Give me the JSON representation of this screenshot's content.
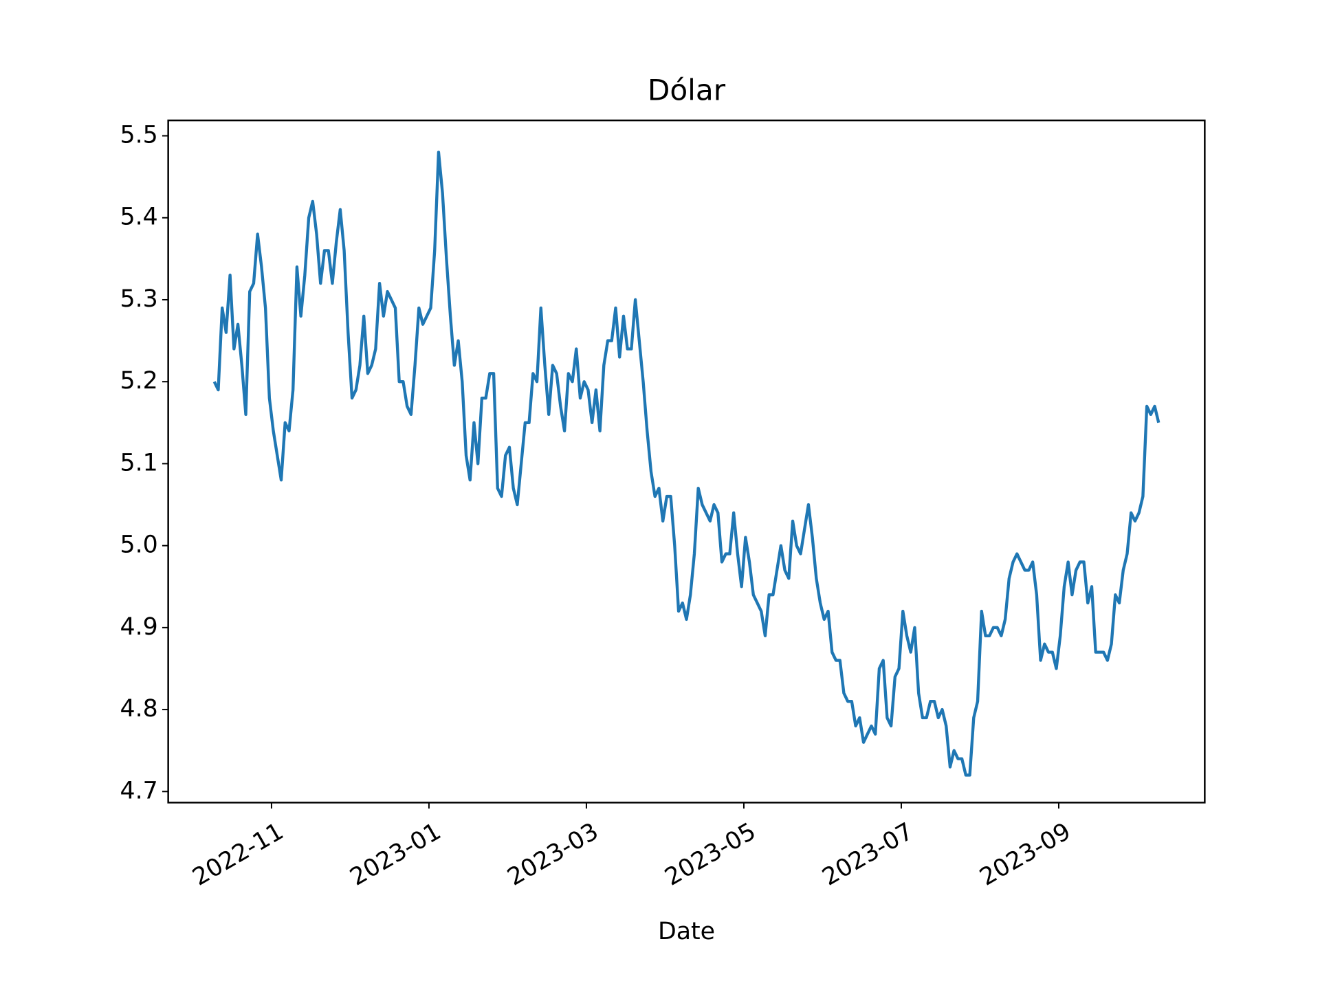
{
  "chart_data": {
    "type": "line",
    "title": "Dólar",
    "x_label": "Date",
    "color": "#1f77b4",
    "grid": false,
    "xticks": [
      "2022-11",
      "2023-01",
      "2023-03",
      "2023-05",
      "2023-07",
      "2023-09"
    ],
    "ylim": [
      4.6865,
      5.5188
    ],
    "yticks": [
      {
        "value": 4.7,
        "label": "4.7"
      },
      {
        "value": 4.8,
        "label": "4.8"
      },
      {
        "value": 4.9,
        "label": "4.9"
      },
      {
        "value": 5.0,
        "label": "5.0"
      },
      {
        "value": 5.1,
        "label": "5.1"
      },
      {
        "value": 5.2,
        "label": "5.2"
      },
      {
        "value": 5.3,
        "label": "5.3"
      },
      {
        "value": 5.4,
        "label": "5.4"
      },
      {
        "value": 5.5,
        "label": "5.5"
      }
    ],
    "values": [
      5.2,
      5.19,
      5.29,
      5.26,
      5.33,
      5.24,
      5.27,
      5.22,
      5.16,
      5.31,
      5.32,
      5.38,
      5.34,
      5.29,
      5.18,
      5.14,
      5.11,
      5.08,
      5.15,
      5.14,
      5.19,
      5.34,
      5.28,
      5.33,
      5.4,
      5.42,
      5.38,
      5.32,
      5.36,
      5.36,
      5.32,
      5.37,
      5.41,
      5.36,
      5.26,
      5.18,
      5.19,
      5.22,
      5.28,
      5.21,
      5.22,
      5.24,
      5.32,
      5.28,
      5.31,
      5.3,
      5.29,
      5.2,
      5.2,
      5.17,
      5.16,
      5.22,
      5.29,
      5.27,
      5.28,
      5.29,
      5.36,
      5.48,
      5.43,
      5.35,
      5.28,
      5.22,
      5.25,
      5.2,
      5.11,
      5.08,
      5.15,
      5.1,
      5.18,
      5.18,
      5.21,
      5.21,
      5.07,
      5.06,
      5.11,
      5.12,
      5.07,
      5.05,
      5.1,
      5.15,
      5.15,
      5.21,
      5.2,
      5.29,
      5.22,
      5.16,
      5.22,
      5.21,
      5.17,
      5.14,
      5.21,
      5.2,
      5.24,
      5.18,
      5.2,
      5.19,
      5.15,
      5.19,
      5.14,
      5.22,
      5.25,
      5.25,
      5.29,
      5.23,
      5.28,
      5.24,
      5.24,
      5.3,
      5.25,
      5.2,
      5.14,
      5.09,
      5.06,
      5.07,
      5.03,
      5.06,
      5.06,
      5.0,
      4.92,
      4.93,
      4.91,
      4.94,
      4.99,
      5.07,
      5.05,
      5.04,
      5.03,
      5.05,
      5.04,
      4.98,
      4.99,
      4.99,
      5.04,
      4.99,
      4.95,
      5.01,
      4.98,
      4.94,
      4.93,
      4.92,
      4.89,
      4.94,
      4.94,
      4.97,
      5.0,
      4.97,
      4.96,
      5.03,
      5.0,
      4.99,
      5.02,
      5.05,
      5.01,
      4.96,
      4.93,
      4.91,
      4.92,
      4.87,
      4.86,
      4.86,
      4.82,
      4.81,
      4.81,
      4.78,
      4.79,
      4.76,
      4.77,
      4.78,
      4.77,
      4.85,
      4.86,
      4.79,
      4.78,
      4.84,
      4.85,
      4.92,
      4.89,
      4.87,
      4.9,
      4.82,
      4.79,
      4.79,
      4.81,
      4.81,
      4.79,
      4.8,
      4.78,
      4.73,
      4.75,
      4.74,
      4.74,
      4.72,
      4.72,
      4.79,
      4.81,
      4.92,
      4.89,
      4.89,
      4.9,
      4.9,
      4.89,
      4.91,
      4.96,
      4.98,
      4.99,
      4.98,
      4.97,
      4.97,
      4.98,
      4.94,
      4.86,
      4.88,
      4.87,
      4.87,
      4.85,
      4.89,
      4.95,
      4.98,
      4.94,
      4.97,
      4.98,
      4.98,
      4.93,
      4.95,
      4.87,
      4.87,
      4.87,
      4.86,
      4.88,
      4.94,
      4.93,
      4.97,
      4.99,
      5.04,
      5.03,
      5.04,
      5.06,
      5.17,
      5.16,
      5.17,
      5.15
    ]
  }
}
